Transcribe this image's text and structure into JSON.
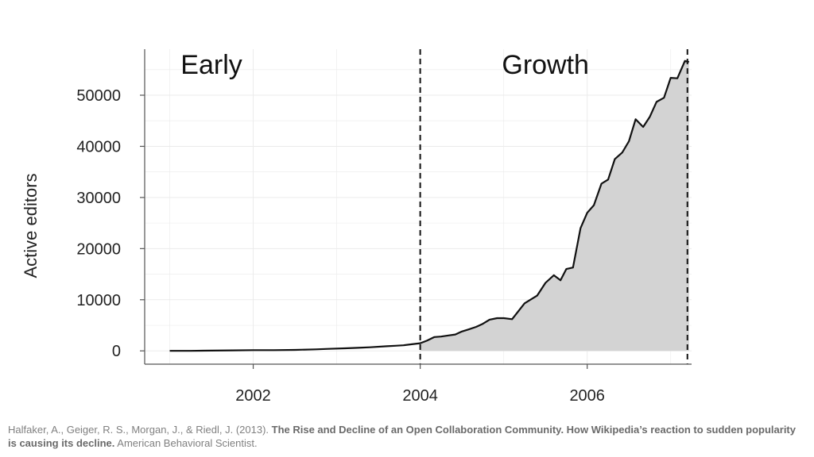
{
  "chart_data": {
    "type": "area",
    "title": "",
    "xlabel": "",
    "ylabel": "Active editors",
    "xlim": [
      2000.7,
      2007.25
    ],
    "ylim": [
      -2600,
      59000
    ],
    "x_ticks": [
      {
        "value": 2002,
        "label": "2002"
      },
      {
        "value": 2004,
        "label": "2004"
      },
      {
        "value": 2006,
        "label": "2006"
      }
    ],
    "y_ticks": [
      {
        "value": 0,
        "label": "0"
      },
      {
        "value": 10000,
        "label": "10000"
      },
      {
        "value": 20000,
        "label": "20000"
      },
      {
        "value": 30000,
        "label": "30000"
      },
      {
        "value": 40000,
        "label": "40000"
      },
      {
        "value": 50000,
        "label": "50000"
      }
    ],
    "grid": true,
    "colors": {
      "line": "#111111",
      "fill": "#d3d3d3",
      "grid": "#ebebeb",
      "axis": "#555555"
    },
    "period_markers": [
      {
        "x": 2004.0,
        "style": "dashed"
      },
      {
        "x": 2007.2,
        "style": "dashed"
      }
    ],
    "region_labels": [
      {
        "text": "Early",
        "x_center": 2001.5
      },
      {
        "text": "Growth",
        "x_center": 2005.5
      }
    ],
    "fill_from_x": 2004.0,
    "series": [
      {
        "x": [
          2001.0,
          2001.25,
          2001.5,
          2001.75,
          2002.0,
          2002.25,
          2002.5,
          2002.75,
          2002.9,
          2003.1,
          2003.25,
          2003.4,
          2003.6,
          2003.7,
          2003.8,
          2003.9,
          2004.0,
          2004.08,
          2004.17,
          2004.25,
          2004.33,
          2004.42,
          2004.5,
          2004.58,
          2004.67,
          2004.75,
          2004.83,
          2004.92,
          2005.0,
          2005.1,
          2005.25,
          2005.4,
          2005.5,
          2005.6,
          2005.68,
          2005.75,
          2005.83,
          2005.92,
          2006.0,
          2006.08,
          2006.17,
          2006.25,
          2006.33,
          2006.42,
          2006.5,
          2006.58,
          2006.67,
          2006.75,
          2006.83,
          2006.92,
          2007.0,
          2007.08,
          2007.17,
          2007.22
        ],
        "y": [
          0,
          0,
          50,
          100,
          150,
          150,
          200,
          300,
          400,
          500,
          600,
          700,
          900,
          1000,
          1100,
          1300,
          1500,
          2000,
          2700,
          2800,
          3000,
          3200,
          3800,
          4200,
          4700,
          5300,
          6100,
          6400,
          6400,
          6200,
          9300,
          10800,
          13300,
          14800,
          13800,
          16000,
          16300,
          24000,
          27000,
          28500,
          32700,
          33500,
          37500,
          38800,
          41000,
          45300,
          43800,
          45800,
          48700,
          49500,
          53400,
          53300,
          56700,
          56500
        ]
      }
    ]
  },
  "citation": {
    "authors": "Halfaker, A., Geiger, R. S., Morgan, J., & Riedl, J. (2013). ",
    "title": "The Rise and Decline of an Open Collaboration Community. How Wikipedia’s reaction to sudden popularity is causing its decline.",
    "journal": " American Behavioral Scientist."
  }
}
